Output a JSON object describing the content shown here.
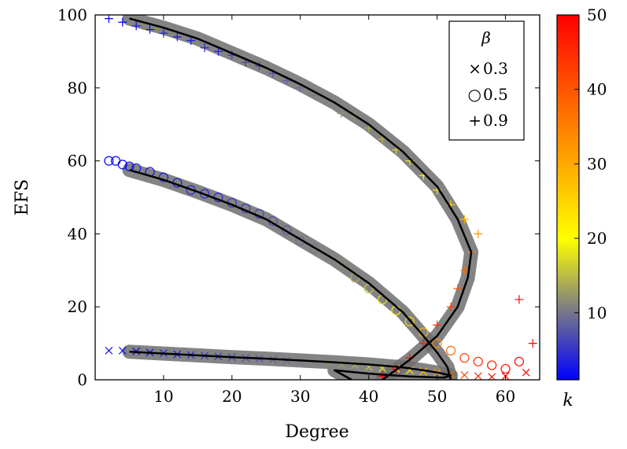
{
  "chart_data": {
    "type": "scatter",
    "xlabel": "Degree",
    "ylabel": "EFS",
    "xlim": [
      0,
      65
    ],
    "ylim": [
      0,
      100
    ],
    "xticks": [
      10,
      20,
      30,
      40,
      50,
      60
    ],
    "yticks": [
      0,
      20,
      40,
      60,
      80,
      100
    ],
    "grid": false,
    "legend": {
      "title": "β",
      "placement": "top-right",
      "entries": [
        {
          "marker": "×",
          "label": "0.3"
        },
        {
          "marker": "○",
          "label": "0.5"
        },
        {
          "marker": "+",
          "label": "0.9"
        }
      ]
    },
    "colorbar": {
      "label": "k",
      "range": [
        1,
        50
      ],
      "ticks": [
        10,
        20,
        30,
        40,
        50
      ],
      "colormap": [
        "#0000ff",
        "#808080",
        "#ffff00",
        "#ff0000"
      ]
    },
    "series": [
      {
        "marker": "x",
        "points": [
          [
            2,
            8,
            1
          ],
          [
            4,
            8,
            1
          ],
          [
            6,
            7.8,
            1
          ],
          [
            8,
            7.5,
            2
          ],
          [
            10,
            7.3,
            3
          ],
          [
            12,
            7,
            3
          ],
          [
            14,
            6.8,
            4
          ],
          [
            16,
            6.6,
            5
          ],
          [
            18,
            6.4,
            5
          ],
          [
            20,
            6.2,
            6
          ],
          [
            22,
            6,
            7
          ],
          [
            24,
            5.8,
            7
          ],
          [
            26,
            5.6,
            8
          ],
          [
            28,
            5.3,
            9
          ],
          [
            30,
            5,
            10
          ],
          [
            32,
            4.8,
            11
          ],
          [
            34,
            4.5,
            12
          ],
          [
            36,
            4.2,
            13
          ],
          [
            38,
            4,
            14
          ],
          [
            40,
            3.5,
            16
          ],
          [
            42,
            3.2,
            18
          ],
          [
            44,
            3,
            20
          ],
          [
            46,
            2.6,
            23
          ],
          [
            48,
            2.3,
            27
          ],
          [
            50,
            2,
            32
          ],
          [
            52,
            1.6,
            37
          ],
          [
            54,
            1.3,
            41
          ],
          [
            56,
            1,
            45
          ],
          [
            58,
            0.8,
            48
          ],
          [
            60,
            1,
            50
          ],
          [
            63,
            2,
            50
          ]
        ],
        "fit": [
          [
            5,
            7.7
          ],
          [
            10,
            7.2
          ],
          [
            15,
            6.7
          ],
          [
            20,
            6.2
          ],
          [
            25,
            5.8
          ],
          [
            30,
            5.3
          ],
          [
            35,
            4.8
          ],
          [
            40,
            4.2
          ],
          [
            45,
            3.4
          ],
          [
            48,
            2.6
          ],
          [
            50,
            2
          ],
          [
            52,
            1.2
          ],
          [
            51,
            0.6
          ],
          [
            46,
            0.9
          ],
          [
            40,
            1.7
          ],
          [
            35,
            2.6
          ],
          [
            37.5,
            0
          ]
        ]
      },
      {
        "marker": "o",
        "points": [
          [
            2,
            60,
            1
          ],
          [
            3,
            60,
            1
          ],
          [
            4,
            59,
            1
          ],
          [
            5,
            58.5,
            2
          ],
          [
            6,
            58,
            2
          ],
          [
            8,
            57,
            2
          ],
          [
            10,
            55.5,
            3
          ],
          [
            12,
            54,
            3
          ],
          [
            14,
            52,
            4
          ],
          [
            16,
            51,
            4
          ],
          [
            18,
            50,
            4
          ],
          [
            20,
            48.5,
            5
          ],
          [
            22,
            47,
            5
          ],
          [
            24,
            45.5,
            6
          ],
          [
            26,
            43.5,
            7
          ],
          [
            28,
            41,
            8
          ],
          [
            30,
            38,
            9
          ],
          [
            32,
            36,
            10
          ],
          [
            34,
            34,
            11
          ],
          [
            36,
            32,
            12
          ],
          [
            38,
            28,
            14
          ],
          [
            40,
            25,
            16
          ],
          [
            42,
            22,
            18
          ],
          [
            44,
            19,
            21
          ],
          [
            46,
            16,
            25
          ],
          [
            48,
            13,
            29
          ],
          [
            50,
            10,
            34
          ],
          [
            52,
            8,
            38
          ],
          [
            54,
            6,
            42
          ],
          [
            56,
            5,
            45
          ],
          [
            58,
            4,
            47
          ],
          [
            60,
            3,
            49
          ],
          [
            62,
            5,
            50
          ]
        ],
        "fit": [
          [
            5,
            57.5
          ],
          [
            10,
            54.8
          ],
          [
            15,
            51.5
          ],
          [
            20,
            48
          ],
          [
            25,
            44
          ],
          [
            30,
            38.5
          ],
          [
            35,
            33
          ],
          [
            40,
            26.5
          ],
          [
            45,
            18.5
          ],
          [
            48,
            12
          ],
          [
            50,
            7.5
          ],
          [
            51.5,
            3.5
          ],
          [
            52,
            0
          ]
        ]
      },
      {
        "marker": "+",
        "points": [
          [
            2,
            99,
            1
          ],
          [
            4,
            98,
            1
          ],
          [
            6,
            97,
            2
          ],
          [
            8,
            96,
            2
          ],
          [
            10,
            95,
            3
          ],
          [
            12,
            94,
            3
          ],
          [
            14,
            93,
            3
          ],
          [
            16,
            91,
            4
          ],
          [
            18,
            90,
            4
          ],
          [
            20,
            89,
            5
          ],
          [
            22,
            87,
            6
          ],
          [
            24,
            86,
            6
          ],
          [
            26,
            84,
            7
          ],
          [
            28,
            82,
            8
          ],
          [
            30,
            80,
            9
          ],
          [
            32,
            78,
            10
          ],
          [
            34,
            76,
            11
          ],
          [
            36,
            73,
            12
          ],
          [
            38,
            72,
            13
          ],
          [
            40,
            69,
            14
          ],
          [
            42,
            66,
            15
          ],
          [
            44,
            63,
            17
          ],
          [
            46,
            60,
            19
          ],
          [
            48,
            56,
            21
          ],
          [
            50,
            52,
            23
          ],
          [
            52,
            48,
            26
          ],
          [
            54,
            44,
            29
          ],
          [
            56,
            40,
            32
          ],
          [
            55,
            35,
            35
          ],
          [
            54,
            30,
            37
          ],
          [
            53,
            25,
            40
          ],
          [
            52,
            20,
            42
          ],
          [
            50,
            15,
            44
          ],
          [
            48,
            10,
            46
          ],
          [
            46,
            6,
            48
          ],
          [
            44,
            3,
            50
          ],
          [
            42,
            1,
            50
          ],
          [
            62,
            22,
            50
          ],
          [
            64,
            10,
            50
          ]
        ],
        "fit": [
          [
            5,
            99
          ],
          [
            10,
            96.5
          ],
          [
            15,
            93.5
          ],
          [
            20,
            89.5
          ],
          [
            25,
            85.5
          ],
          [
            30,
            81
          ],
          [
            35,
            76
          ],
          [
            40,
            70
          ],
          [
            45,
            62.5
          ],
          [
            50,
            53
          ],
          [
            53,
            44
          ],
          [
            55,
            35
          ],
          [
            54.5,
            28
          ],
          [
            53,
            20
          ],
          [
            50,
            12
          ],
          [
            46,
            5.5
          ],
          [
            42,
            0
          ]
        ]
      }
    ]
  }
}
